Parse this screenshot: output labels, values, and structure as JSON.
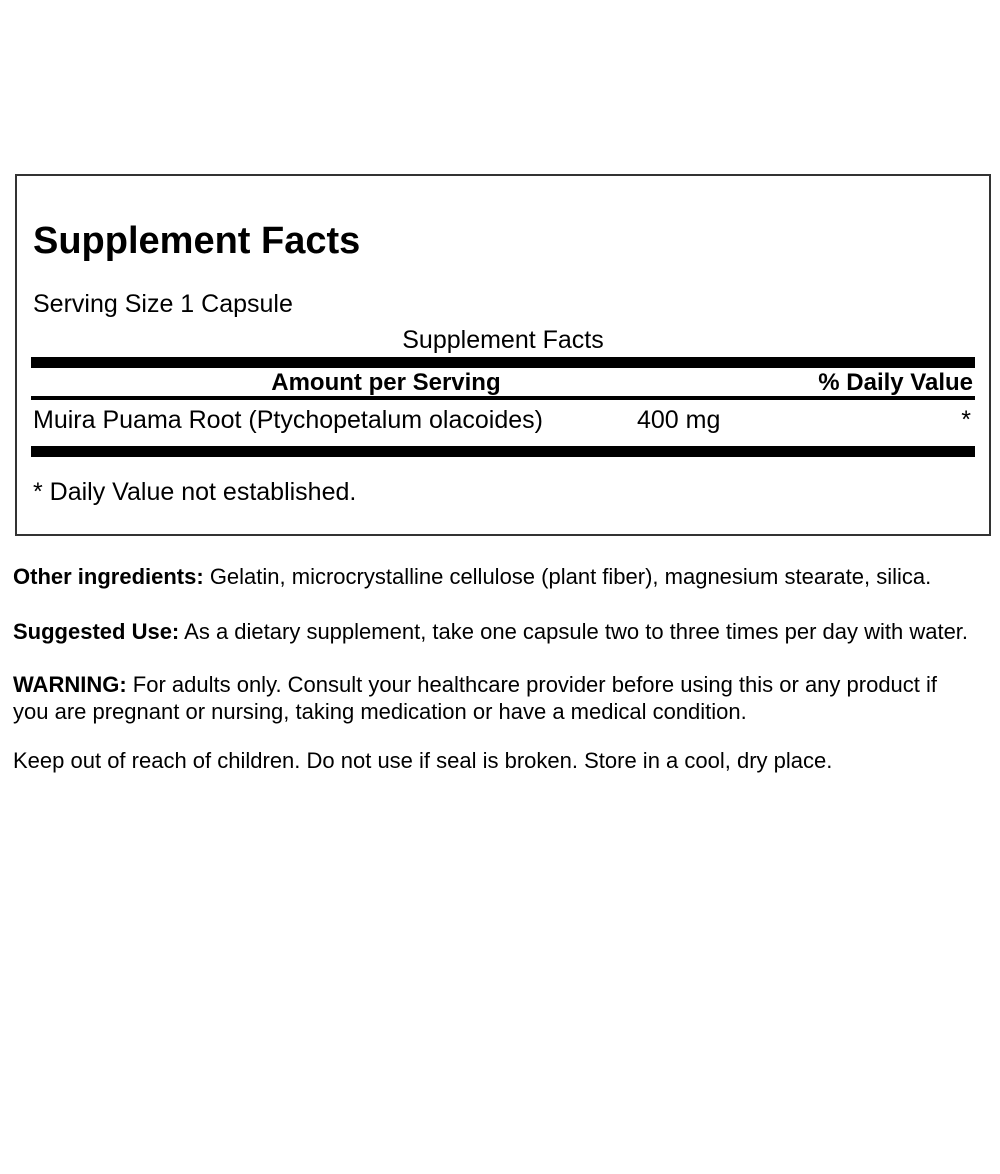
{
  "panel": {
    "title": "Supplement Facts",
    "serving_size": "Serving Size 1 Capsule",
    "table_title": "Supplement Facts",
    "columns": {
      "amount": "Amount per Serving",
      "daily_value": "% Daily Value"
    },
    "rows": [
      {
        "name": "Muira Puama Root (Ptychopetalum olacoides)",
        "amount": "400 mg",
        "daily_value": "*"
      }
    ],
    "footnote": "* Daily Value not established."
  },
  "paragraphs": [
    {
      "lead": "Other ingredients:",
      "text": "Gelatin, microcrystalline cellulose (plant fiber), magnesium stearate, silica."
    },
    {
      "lead": "Suggested Use:",
      "text": "As a dietary supplement, take one capsule two to three times per day with water."
    },
    {
      "lead": "WARNING:",
      "text": "For adults only. Consult your healthcare provider before using this or any product if you are pregnant or nursing, taking medication or have a medical condition."
    },
    {
      "lead": "",
      "text": "Keep out of reach of children. Do not use if seal is broken. Store in a cool, dry place."
    }
  ],
  "colors": {
    "bar": "#000000",
    "border": "#333333",
    "text": "#000000",
    "background": "#ffffff"
  }
}
